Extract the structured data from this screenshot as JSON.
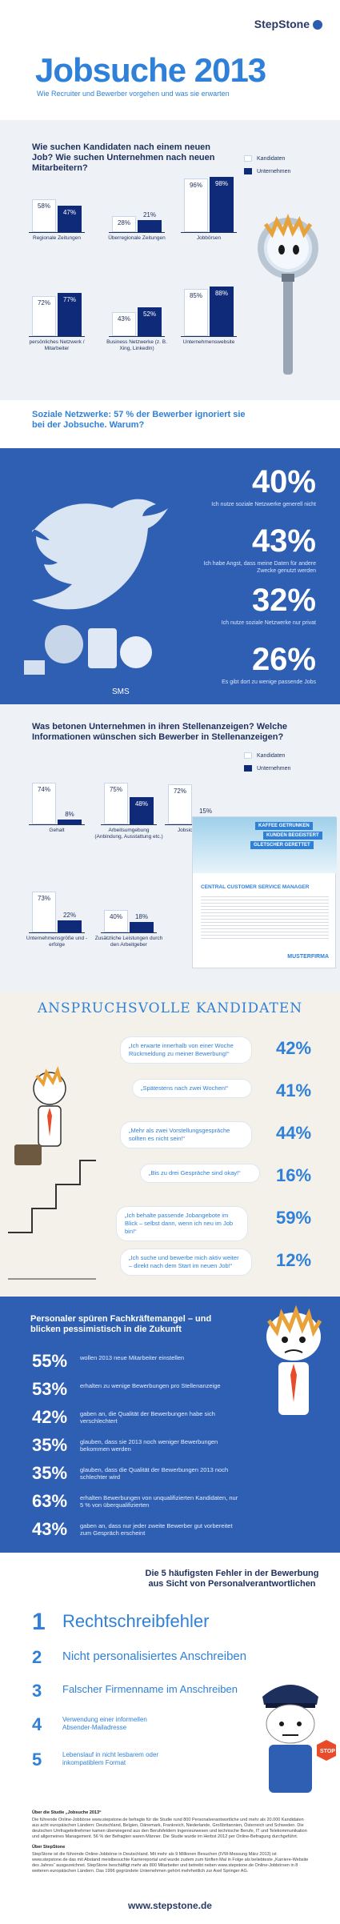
{
  "header": {
    "logo": "StepStone",
    "title": "Jobsuche 2013",
    "subtitle": "Wie Recruiter und Bewerber vorgehen und was sie erwarten"
  },
  "section1": {
    "question": "Wie suchen Kandidaten nach einem neuen Job? Wie suchen Unternehmen nach neuen Mitarbeitern?",
    "legend": [
      "Kandidaten",
      "Unternehmen"
    ]
  },
  "chart_data": [
    {
      "type": "bar",
      "title": "Wie suchen Kandidaten nach einem neuen Job? Wie suchen Unternehmen nach neuen Mitarbeitern?",
      "categories": [
        "Regionale Zeitungen",
        "Überregionale Zeitungen",
        "Jobbörsen",
        "persönliches Netzwerk / Mitarbeiter",
        "Business Netzwerke (z. B. Xing, LinkedIn)",
        "Unternehmenswebsite"
      ],
      "series": [
        {
          "name": "Kandidaten",
          "values": [
            58,
            28,
            96,
            72,
            43,
            85
          ]
        },
        {
          "name": "Unternehmen",
          "values": [
            47,
            21,
            98,
            77,
            52,
            88
          ]
        }
      ],
      "ylim": [
        0,
        100
      ]
    },
    {
      "type": "bar",
      "title": "Was betonen Unternehmen in ihren Stellenanzeigen? Welche Informationen wünschen sich Bewerber in Stellenanzeigen?",
      "categories": [
        "Gehalt",
        "Arbeitsumgebung (Anbindung, Ausstattung etc.)",
        "Jobsicherheit",
        "Unternehmensgröße und -erfolge",
        "Zusätzliche Leistungen durch den Arbeitgeber"
      ],
      "series": [
        {
          "name": "Kandidaten",
          "values": [
            74,
            75,
            72,
            73,
            40
          ]
        },
        {
          "name": "Unternehmen",
          "values": [
            8,
            48,
            15,
            22,
            18
          ]
        }
      ],
      "ylim": [
        0,
        100
      ]
    }
  ],
  "social": {
    "question": "Soziale Netzwerke: 57 % der Bewerber ignoriert sie bei der Jobsuche. Warum?",
    "items": [
      {
        "pct": "40%",
        "text": "Ich nutze soziale Netzwerke generell nicht"
      },
      {
        "pct": "43%",
        "text": "Ich habe Angst, dass meine Daten für andere Zwecke genutzt werden"
      },
      {
        "pct": "32%",
        "text": "Ich nutze soziale Netzwerke nur privat"
      },
      {
        "pct": "26%",
        "text": "Es gibt dort zu wenige passende Jobs"
      }
    ]
  },
  "section2": {
    "question": "Was betonen Unternehmen in ihren Stellenanzeigen? Welche Informationen wünschen sich Bewerber in Stellenanzeigen?",
    "legend": [
      "Kandidaten",
      "Unternehmen"
    ],
    "ad": {
      "line1": "KAFFEE GETRUNKEN",
      "line2": "KUNDEN BEGEISTERT",
      "line3": "GLETSCHER GERETTET",
      "role": "CENTRAL CUSTOMER SERVICE MANAGER",
      "company": "MUSTERFIRMA"
    }
  },
  "kandidaten": {
    "title": "ANSPRUCHSVOLLE KANDIDATEN",
    "items": [
      {
        "text": "„Ich erwarte innerhalb von einer Woche Rückmeldung zu meiner Bewerbung!“",
        "pct": "42%"
      },
      {
        "text": "„Spätestens nach zwei Wochen!“",
        "pct": "41%"
      },
      {
        "text": "„Mehr als zwei Vorstellungsgespräche sollten es nicht sein!“",
        "pct": "44%"
      },
      {
        "text": "„Bis zu drei Gespräche sind okay!“",
        "pct": "16%"
      },
      {
        "text": "„Ich behalte passende Jobangebote im Blick – selbst dann, wenn ich neu im Job bin!“",
        "pct": "59%"
      },
      {
        "text": "„Ich suche und bewerbe mich aktiv weiter – direkt nach dem Start im neuen Job!“",
        "pct": "12%"
      }
    ]
  },
  "personaler": {
    "title": "Personaler spüren Fachkräftemangel – und blicken pessimistisch in die Zukunft",
    "items": [
      {
        "pct": "55%",
        "text": "wollen 2013 neue Mitarbeiter einstellen"
      },
      {
        "pct": "53%",
        "text": "erhalten zu wenige Bewerbungen pro Stellenanzeige"
      },
      {
        "pct": "42%",
        "text": "gaben an, die Qualität der Bewerbungen habe sich verschlechtert"
      },
      {
        "pct": "35%",
        "text": "glauben, dass sie 2013 noch weniger Bewerbungen bekommen werden"
      },
      {
        "pct": "35%",
        "text": "glauben, dass die Qualität der Bewerbungen 2013 noch schlechter wird"
      },
      {
        "pct": "63%",
        "text": "erhalten Bewerbungen von unqualifizierten Kandidaten, nur 5 % von überqualifizierten"
      },
      {
        "pct": "43%",
        "text": "gaben an, dass nur jeder zweite Bewerber gut vorbereitet zum Gespräch erscheint"
      }
    ]
  },
  "fehler": {
    "title": "Die 5 häufigsten Fehler in der Bewerbung aus Sicht von Personalverantwortlichen",
    "items": [
      {
        "num": "1",
        "text": "Rechtschreibfehler"
      },
      {
        "num": "2",
        "text": "Nicht personalisiertes Anschreiben"
      },
      {
        "num": "3",
        "text": "Falscher Firmenname im Anschreiben"
      },
      {
        "num": "4",
        "text": "Verwendung einer informellen Absender-Mailadresse"
      },
      {
        "num": "5",
        "text": "Lebenslauf in nicht lesbarem oder inkompatiblem Format"
      }
    ],
    "stop": "STOP"
  },
  "footer": {
    "study_title": "Über die Studie „Jobsuche 2013“",
    "study_text": "Die führende Online-Jobbörse www.stepstone.de befragte für die Studie rund 800 Personalverantwortliche und mehr als 20.000 Kandidaten aus acht europäischen Ländern: Deutschland, Belgien, Dänemark, Frankreich, Niederlande, Großbritannien, Österreich und Schweden. Die deutschen Umfrageteilnehmer kamen überwiegend aus den Berufsfeldern Ingenieurwesen und technische Berufe, IT und Telekommunikation und allgemeines Management. 56 % der Befragten waren Männer. Die Studie wurde im Herbst 2012 per Online-Befragung durchgeführt.",
    "about_title": "Über StepStone",
    "about_text": "StepStone ist die führende Online-Jobbörse in Deutschland. Mit mehr als 9 Millionen Besuchen (IVW-Messung März 2013) ist www.stepstone.de das mit Abstand meistbesuchte Karriereportal und wurde zudem zum fünften Mal in Folge als beliebteste „Karriere-Website des Jahres“ ausgezeichnet. StepStone beschäftigt mehr als 800 Mitarbeiter und betreibt neben www.stepstone.de Online-Jobbörsen in 8 weiteren europäischen Ländern. Das 1996 gegründete Unternehmen gehört mehrheitlich zur Axel Springer AG.",
    "url": "www.stepstone.de"
  }
}
